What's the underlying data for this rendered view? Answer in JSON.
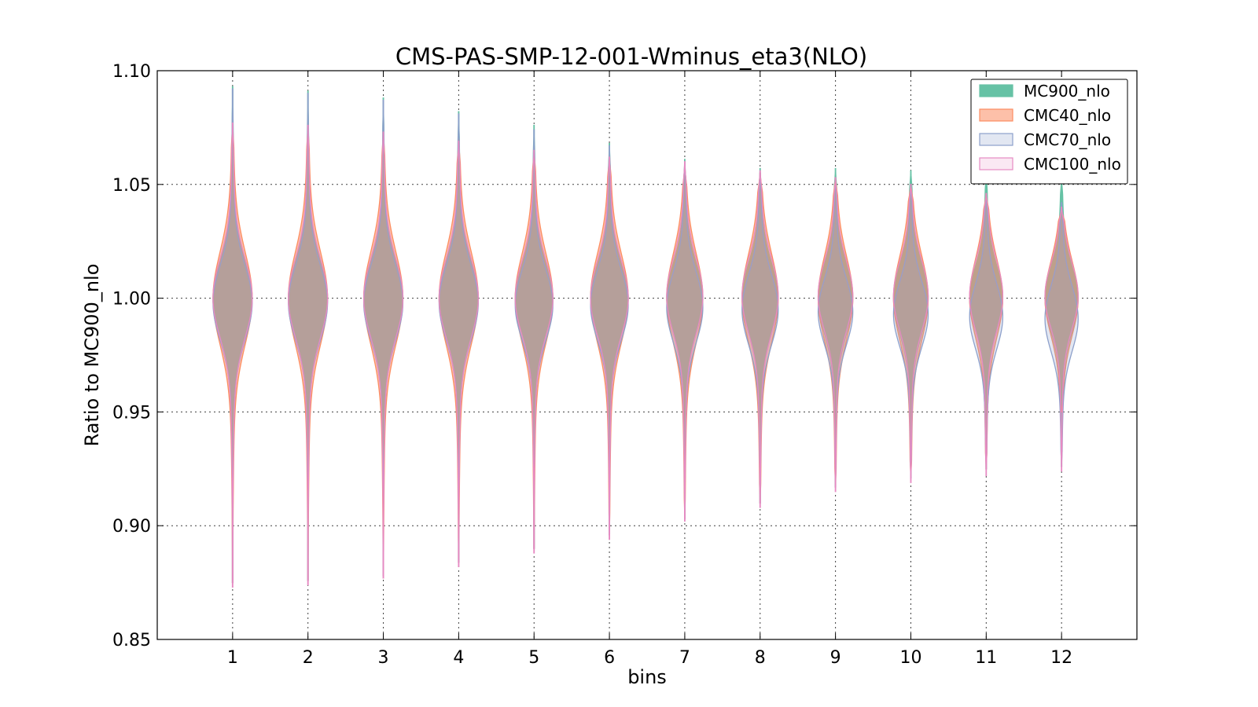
{
  "chart_data": {
    "type": "violin",
    "title": "CMS-PAS-SMP-12-001-Wminus_eta3(NLO)",
    "xlabel": "bins",
    "ylabel": "Ratio to MC900_nlo",
    "ylim": [
      0.85,
      1.1
    ],
    "xlim": [
      0,
      13.0
    ],
    "yticks": [
      "0.85",
      "0.90",
      "0.95",
      "1.00",
      "1.05",
      "1.10"
    ],
    "categories": [
      "1",
      "2",
      "3",
      "4",
      "5",
      "6",
      "7",
      "8",
      "9",
      "10",
      "11",
      "12"
    ],
    "grid": true,
    "legend_position": "top-right",
    "series": [
      {
        "name": "MC900_nlo",
        "fill": "#66c2a5",
        "stroke": "#66c2a5",
        "opacity": 1.0,
        "violins": [
          {
            "min": 0.875,
            "max": 1.093,
            "center": 1.0,
            "spread": 0.016,
            "width": 0.26
          },
          {
            "min": 0.876,
            "max": 1.091,
            "center": 1.0,
            "spread": 0.016,
            "width": 0.26
          },
          {
            "min": 0.878,
            "max": 1.088,
            "center": 1.0,
            "spread": 0.016,
            "width": 0.26
          },
          {
            "min": 0.884,
            "max": 1.082,
            "center": 1.0,
            "spread": 0.016,
            "width": 0.26
          },
          {
            "min": 0.89,
            "max": 1.076,
            "center": 1.0,
            "spread": 0.015,
            "width": 0.25
          },
          {
            "min": 0.896,
            "max": 1.068,
            "center": 1.0,
            "spread": 0.015,
            "width": 0.25
          },
          {
            "min": 0.903,
            "max": 1.061,
            "center": 1.0,
            "spread": 0.015,
            "width": 0.24
          },
          {
            "min": 0.91,
            "max": 1.057,
            "center": 1.0,
            "spread": 0.015,
            "width": 0.24
          },
          {
            "min": 0.917,
            "max": 1.057,
            "center": 1.0,
            "spread": 0.015,
            "width": 0.23
          },
          {
            "min": 0.921,
            "max": 1.056,
            "center": 1.0,
            "spread": 0.015,
            "width": 0.23
          },
          {
            "min": 0.925,
            "max": 1.055,
            "center": 1.0,
            "spread": 0.014,
            "width": 0.22
          },
          {
            "min": 0.926,
            "max": 1.053,
            "center": 1.0,
            "spread": 0.014,
            "width": 0.22
          }
        ]
      },
      {
        "name": "CMC40_nlo",
        "fill": "#fc8d62",
        "stroke": "#fc8d62",
        "opacity": 0.55,
        "violins": [
          {
            "min": 0.875,
            "max": 1.078,
            "center": 1.0,
            "spread": 0.02,
            "width": 0.26
          },
          {
            "min": 0.876,
            "max": 1.077,
            "center": 1.0,
            "spread": 0.02,
            "width": 0.26
          },
          {
            "min": 0.878,
            "max": 1.074,
            "center": 1.0,
            "spread": 0.02,
            "width": 0.26
          },
          {
            "min": 0.884,
            "max": 1.07,
            "center": 1.0,
            "spread": 0.02,
            "width": 0.26
          },
          {
            "min": 0.89,
            "max": 1.066,
            "center": 1.0,
            "spread": 0.019,
            "width": 0.25
          },
          {
            "min": 0.896,
            "max": 1.063,
            "center": 1.0,
            "spread": 0.019,
            "width": 0.25
          },
          {
            "min": 0.903,
            "max": 1.058,
            "center": 1.0,
            "spread": 0.019,
            "width": 0.24
          },
          {
            "min": 0.91,
            "max": 1.055,
            "center": 1.0,
            "spread": 0.019,
            "width": 0.24
          },
          {
            "min": 0.917,
            "max": 1.053,
            "center": 1.0,
            "spread": 0.018,
            "width": 0.23
          },
          {
            "min": 0.921,
            "max": 1.05,
            "center": 1.0,
            "spread": 0.018,
            "width": 0.23
          },
          {
            "min": 0.925,
            "max": 1.046,
            "center": 1.0,
            "spread": 0.017,
            "width": 0.22
          },
          {
            "min": 0.95,
            "max": 1.039,
            "center": 1.0,
            "spread": 0.016,
            "width": 0.22
          }
        ]
      },
      {
        "name": "CMC70_nlo",
        "fill": "#8da0cb",
        "stroke": "#8da0cb",
        "opacity": 0.25,
        "violins": [
          {
            "min": 0.875,
            "max": 1.092,
            "center": 0.998,
            "spread": 0.016,
            "width": 0.26
          },
          {
            "min": 0.876,
            "max": 1.09,
            "center": 0.998,
            "spread": 0.016,
            "width": 0.26
          },
          {
            "min": 0.878,
            "max": 1.087,
            "center": 0.998,
            "spread": 0.016,
            "width": 0.26
          },
          {
            "min": 0.884,
            "max": 1.081,
            "center": 0.998,
            "spread": 0.016,
            "width": 0.26
          },
          {
            "min": 0.89,
            "max": 1.074,
            "center": 0.997,
            "spread": 0.015,
            "width": 0.25
          },
          {
            "min": 0.896,
            "max": 1.067,
            "center": 0.997,
            "spread": 0.015,
            "width": 0.25
          },
          {
            "min": 0.903,
            "max": 1.06,
            "center": 0.996,
            "spread": 0.015,
            "width": 0.24
          },
          {
            "min": 0.91,
            "max": 1.055,
            "center": 0.995,
            "spread": 0.015,
            "width": 0.24
          },
          {
            "min": 0.917,
            "max": 1.053,
            "center": 0.994,
            "spread": 0.014,
            "width": 0.23
          },
          {
            "min": 0.921,
            "max": 1.05,
            "center": 0.993,
            "spread": 0.014,
            "width": 0.23
          },
          {
            "min": 0.925,
            "max": 1.046,
            "center": 0.992,
            "spread": 0.014,
            "width": 0.22
          },
          {
            "min": 0.926,
            "max": 1.042,
            "center": 0.991,
            "spread": 0.014,
            "width": 0.22
          }
        ]
      },
      {
        "name": "CMC100_nlo",
        "fill": "#e78ac3",
        "stroke": "#e78ac3",
        "opacity": 0.15,
        "violins": [
          {
            "min": 0.873,
            "max": 1.077,
            "center": 1.0,
            "spread": 0.017,
            "width": 0.26
          },
          {
            "min": 0.874,
            "max": 1.076,
            "center": 1.0,
            "spread": 0.017,
            "width": 0.26
          },
          {
            "min": 0.877,
            "max": 1.073,
            "center": 1.0,
            "spread": 0.017,
            "width": 0.26
          },
          {
            "min": 0.882,
            "max": 1.069,
            "center": 1.0,
            "spread": 0.017,
            "width": 0.26
          },
          {
            "min": 0.888,
            "max": 1.065,
            "center": 1.0,
            "spread": 0.016,
            "width": 0.25
          },
          {
            "min": 0.894,
            "max": 1.062,
            "center": 1.0,
            "spread": 0.016,
            "width": 0.25
          },
          {
            "min": 0.902,
            "max": 1.06,
            "center": 1.001,
            "spread": 0.016,
            "width": 0.24
          },
          {
            "min": 0.908,
            "max": 1.056,
            "center": 1.001,
            "spread": 0.016,
            "width": 0.24
          },
          {
            "min": 0.915,
            "max": 1.053,
            "center": 1.001,
            "spread": 0.015,
            "width": 0.23
          },
          {
            "min": 0.919,
            "max": 1.05,
            "center": 1.001,
            "spread": 0.015,
            "width": 0.23
          },
          {
            "min": 0.922,
            "max": 1.046,
            "center": 1.001,
            "spread": 0.015,
            "width": 0.22
          },
          {
            "min": 0.924,
            "max": 1.04,
            "center": 1.001,
            "spread": 0.014,
            "width": 0.22
          }
        ]
      }
    ]
  }
}
